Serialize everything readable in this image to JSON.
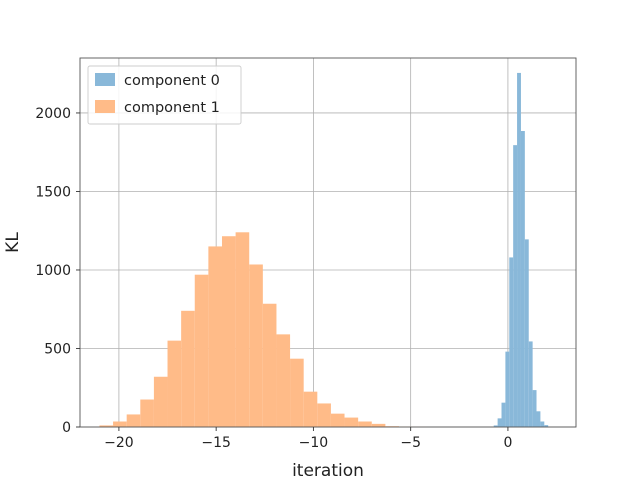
{
  "chart_data": {
    "type": "bar",
    "subtype": "histogram",
    "title": "",
    "xlabel": "iteration",
    "ylabel": "KL",
    "xlim": [
      -22,
      3.5
    ],
    "ylim": [
      0,
      2350
    ],
    "grid": true,
    "legend_position": "top-left",
    "x_ticks": [
      {
        "value": -20,
        "label": "−20"
      },
      {
        "value": -15,
        "label": "−15"
      },
      {
        "value": -10,
        "label": "−10"
      },
      {
        "value": -5,
        "label": "−5"
      },
      {
        "value": 0,
        "label": "0"
      }
    ],
    "y_ticks": [
      {
        "value": 0,
        "label": "0"
      },
      {
        "value": 500,
        "label": "500"
      },
      {
        "value": 1000,
        "label": "1000"
      },
      {
        "value": 1500,
        "label": "1500"
      },
      {
        "value": 2000,
        "label": "2000"
      }
    ],
    "series": [
      {
        "name": "component 1",
        "color": "#ffbb88",
        "bins": [
          {
            "x0": -21.0,
            "x1": -20.3,
            "count": 10
          },
          {
            "x0": -20.3,
            "x1": -19.6,
            "count": 35
          },
          {
            "x0": -19.6,
            "x1": -18.9,
            "count": 80
          },
          {
            "x0": -18.9,
            "x1": -18.2,
            "count": 175
          },
          {
            "x0": -18.2,
            "x1": -17.5,
            "count": 320
          },
          {
            "x0": -17.5,
            "x1": -16.8,
            "count": 550
          },
          {
            "x0": -16.8,
            "x1": -16.1,
            "count": 740
          },
          {
            "x0": -16.1,
            "x1": -15.4,
            "count": 970
          },
          {
            "x0": -15.4,
            "x1": -14.7,
            "count": 1150
          },
          {
            "x0": -14.7,
            "x1": -14.0,
            "count": 1215
          },
          {
            "x0": -14.0,
            "x1": -13.3,
            "count": 1240
          },
          {
            "x0": -13.3,
            "x1": -12.6,
            "count": 1035
          },
          {
            "x0": -12.6,
            "x1": -11.9,
            "count": 785
          },
          {
            "x0": -11.9,
            "x1": -11.2,
            "count": 590
          },
          {
            "x0": -11.2,
            "x1": -10.5,
            "count": 435
          },
          {
            "x0": -10.5,
            "x1": -9.8,
            "count": 225
          },
          {
            "x0": -9.8,
            "x1": -9.1,
            "count": 150
          },
          {
            "x0": -9.1,
            "x1": -8.4,
            "count": 85
          },
          {
            "x0": -8.4,
            "x1": -7.7,
            "count": 60
          },
          {
            "x0": -7.7,
            "x1": -7.0,
            "count": 35
          },
          {
            "x0": -7.0,
            "x1": -6.3,
            "count": 20
          },
          {
            "x0": -6.3,
            "x1": -5.6,
            "count": 5
          },
          {
            "x0": -5.6,
            "x1": -4.9,
            "count": 3
          },
          {
            "x0": -4.9,
            "x1": -4.2,
            "count": 2
          }
        ]
      },
      {
        "name": "component 0",
        "color": "#89b8d9",
        "bins": [
          {
            "x0": -0.73,
            "x1": -0.53,
            "count": 10
          },
          {
            "x0": -0.53,
            "x1": -0.33,
            "count": 55
          },
          {
            "x0": -0.33,
            "x1": -0.13,
            "count": 155
          },
          {
            "x0": -0.13,
            "x1": 0.07,
            "count": 480
          },
          {
            "x0": 0.07,
            "x1": 0.27,
            "count": 1080
          },
          {
            "x0": 0.27,
            "x1": 0.47,
            "count": 1795
          },
          {
            "x0": 0.47,
            "x1": 0.67,
            "count": 2255
          },
          {
            "x0": 0.67,
            "x1": 0.87,
            "count": 1885
          },
          {
            "x0": 0.87,
            "x1": 1.07,
            "count": 1195
          },
          {
            "x0": 1.07,
            "x1": 1.27,
            "count": 545
          },
          {
            "x0": 1.27,
            "x1": 1.47,
            "count": 235
          },
          {
            "x0": 1.47,
            "x1": 1.67,
            "count": 100
          },
          {
            "x0": 1.67,
            "x1": 1.87,
            "count": 35
          },
          {
            "x0": 1.87,
            "x1": 2.07,
            "count": 12
          }
        ]
      }
    ],
    "legend": [
      {
        "label": "component 0",
        "color": "#89b8d9"
      },
      {
        "label": "component 1",
        "color": "#ffbb88"
      }
    ]
  }
}
